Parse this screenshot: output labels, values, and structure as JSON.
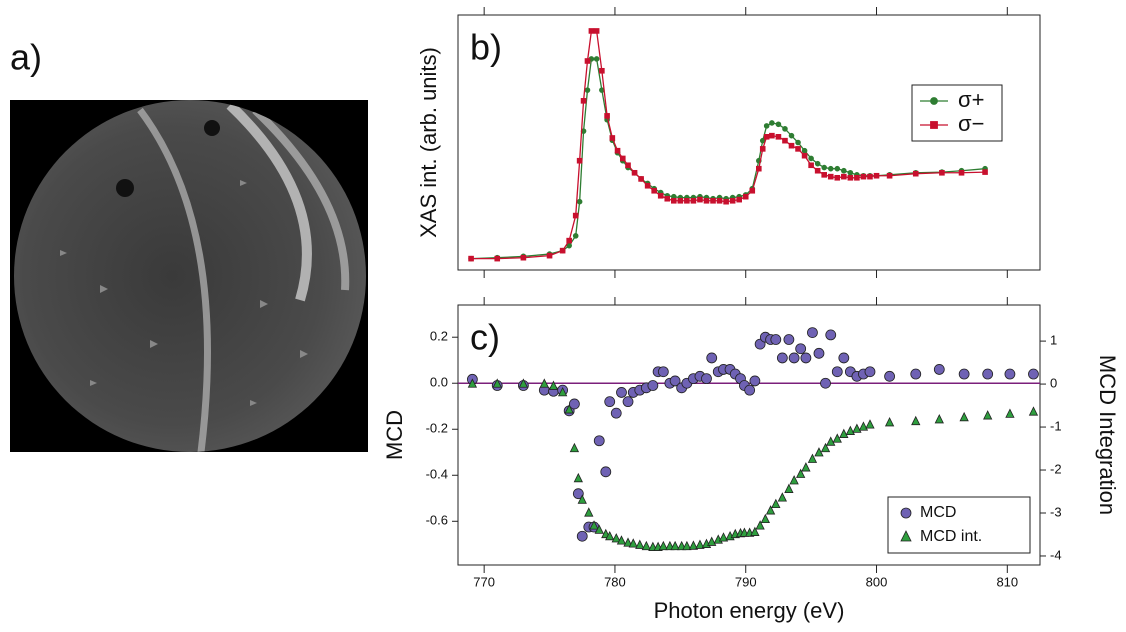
{
  "image_panel": {
    "label": "a)"
  },
  "chart_data": [
    {
      "type": "line",
      "label": "b)",
      "y_label": "XAS int. (arb. units)",
      "x": [
        769,
        771,
        773,
        775,
        776,
        776.5,
        777,
        777.3,
        777.6,
        777.9,
        778.2,
        778.6,
        779,
        779.4,
        779.8,
        780.2,
        780.6,
        781,
        781.5,
        782,
        782.5,
        783,
        783.5,
        784,
        784.5,
        785,
        785.5,
        786,
        786.5,
        787,
        787.5,
        788,
        788.5,
        789,
        789.5,
        790,
        790.5,
        791,
        791.3,
        791.6,
        792,
        792.5,
        793,
        793.5,
        794,
        794.5,
        795,
        795.5,
        796,
        796.5,
        797,
        797.5,
        798,
        798.5,
        799,
        799.5,
        800,
        801,
        803,
        805,
        806.5,
        808.3
      ],
      "xlim": [
        768,
        812.5
      ],
      "ylim": [
        -0.05,
        1.07
      ],
      "legend": "upper right",
      "series": [
        {
          "name": "σ+",
          "color": "#2e7d32",
          "marker": "circle",
          "values": [
            0,
            0.004,
            0.01,
            0.02,
            0.035,
            0.057,
            0.1,
            0.25,
            0.56,
            0.74,
            0.877,
            0.877,
            0.74,
            0.61,
            0.52,
            0.465,
            0.43,
            0.4,
            0.377,
            0.35,
            0.33,
            0.307,
            0.29,
            0.276,
            0.272,
            0.268,
            0.268,
            0.268,
            0.272,
            0.268,
            0.263,
            0.268,
            0.263,
            0.268,
            0.272,
            0.28,
            0.307,
            0.43,
            0.518,
            0.583,
            0.596,
            0.59,
            0.57,
            0.54,
            0.51,
            0.474,
            0.44,
            0.417,
            0.4,
            0.395,
            0.395,
            0.386,
            0.377,
            0.368,
            0.364,
            0.364,
            0.364,
            0.368,
            0.377,
            0.38,
            0.386,
            0.395
          ]
        },
        {
          "name": "σ−",
          "color": "#c8102e",
          "marker": "square",
          "values": [
            0,
            0,
            0.004,
            0.013,
            0.035,
            0.079,
            0.189,
            0.43,
            0.693,
            0.868,
            1.0,
            1.0,
            0.825,
            0.627,
            0.53,
            0.474,
            0.44,
            0.41,
            0.377,
            0.35,
            0.32,
            0.298,
            0.276,
            0.263,
            0.254,
            0.254,
            0.254,
            0.254,
            0.259,
            0.254,
            0.254,
            0.254,
            0.25,
            0.254,
            0.259,
            0.272,
            0.298,
            0.395,
            0.482,
            0.535,
            0.54,
            0.535,
            0.518,
            0.496,
            0.482,
            0.452,
            0.41,
            0.386,
            0.368,
            0.36,
            0.355,
            0.36,
            0.355,
            0.355,
            0.36,
            0.36,
            0.364,
            0.364,
            0.373,
            0.377,
            0.377,
            0.38
          ]
        }
      ]
    },
    {
      "type": "scatter",
      "label": "c)",
      "x_label": "Photon energy (eV)",
      "y_label": "MCD",
      "y2_label": "MCD Integration",
      "x": [
        769.1,
        771,
        773,
        774.6,
        775.3,
        776,
        776.5,
        776.9,
        777.2,
        777.5,
        778,
        778.4,
        778.8,
        779.3,
        779.6,
        780.1,
        780.5,
        781,
        781.4,
        781.9,
        782.4,
        782.9,
        783.3,
        783.7,
        784.2,
        784.6,
        785.1,
        785.5,
        786,
        786.5,
        787,
        787.4,
        787.9,
        788.3,
        788.8,
        789.2,
        789.6,
        789.9,
        790.3,
        790.7,
        791.1,
        791.5,
        791.9,
        792.3,
        792.8,
        793.3,
        793.7,
        794.2,
        794.6,
        795.1,
        795.6,
        796.1,
        796.5,
        797,
        797.5,
        798,
        798.5,
        799,
        799.5,
        801,
        803,
        804.8,
        806.7,
        808.5,
        810.2,
        812
      ],
      "xlim": [
        768,
        812.5
      ],
      "xticks": [
        770,
        780,
        790,
        800,
        810
      ],
      "ylim": [
        -0.79,
        0.34
      ],
      "yticks": [
        -0.6,
        -0.4,
        -0.2,
        {
          "value": 0,
          "label": "0.0"
        },
        0.2
      ],
      "y2lim": [
        -4.21,
        1.84
      ],
      "y2ticks": [
        -4,
        -3,
        -2,
        -1,
        0,
        1
      ],
      "hline": 0,
      "hline_color": "#7b1f7b",
      "legend": "lower right",
      "series": [
        {
          "name": "MCD",
          "color": "#6f62b4",
          "marker": "circle",
          "values": [
            0.017,
            -0.01,
            -0.01,
            -0.03,
            -0.035,
            -0.03,
            -0.12,
            -0.09,
            -0.48,
            -0.665,
            -0.625,
            -0.625,
            -0.25,
            -0.385,
            -0.08,
            -0.13,
            -0.04,
            -0.08,
            -0.04,
            -0.03,
            -0.02,
            -0.01,
            0.05,
            0.05,
            0.0,
            0.01,
            -0.02,
            0.0,
            0.02,
            0.03,
            0.02,
            0.11,
            0.05,
            0.06,
            0.06,
            0.04,
            0.02,
            -0.01,
            -0.03,
            0.01,
            0.17,
            0.2,
            0.19,
            0.19,
            0.11,
            0.19,
            0.11,
            0.15,
            0.11,
            0.22,
            0.13,
            0.0,
            0.21,
            0.05,
            0.11,
            0.05,
            0.03,
            0.04,
            0.05,
            0.03,
            0.04,
            0.06,
            0.04,
            0.04,
            0.04,
            0.04
          ]
        },
        {
          "name": "MCD int.",
          "color": "#2e9e3e",
          "marker": "triangle",
          "axis": "y2",
          "values": [
            0,
            0,
            0,
            0,
            -0.05,
            -0.2,
            -0.6,
            -1.5,
            -2.2,
            -2.7,
            -3.0,
            -3.3,
            -3.4,
            -3.5,
            -3.55,
            -3.6,
            -3.65,
            -3.7,
            -3.72,
            -3.75,
            -3.78,
            -3.8,
            -3.8,
            -3.78,
            -3.78,
            -3.78,
            -3.78,
            -3.78,
            -3.77,
            -3.75,
            -3.73,
            -3.68,
            -3.63,
            -3.58,
            -3.55,
            -3.5,
            -3.48,
            -3.47,
            -3.47,
            -3.45,
            -3.3,
            -3.15,
            -2.95,
            -2.8,
            -2.65,
            -2.45,
            -2.25,
            -2.1,
            -1.95,
            -1.75,
            -1.6,
            -1.5,
            -1.35,
            -1.28,
            -1.17,
            -1.1,
            -1.05,
            -1.0,
            -0.95,
            -0.9,
            -0.87,
            -0.83,
            -0.78,
            -0.74,
            -0.7,
            -0.65
          ]
        }
      ]
    }
  ]
}
